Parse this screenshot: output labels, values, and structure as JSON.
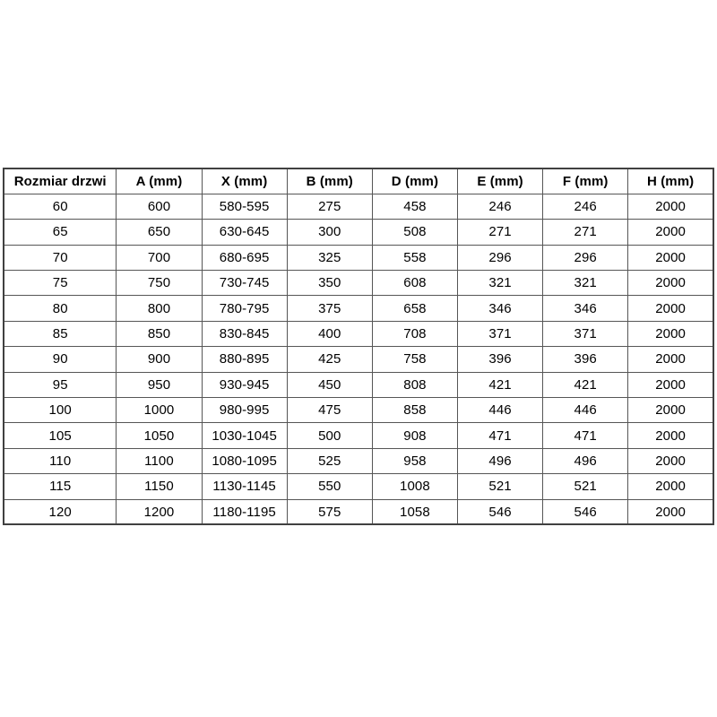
{
  "page": {
    "background_color": "#ffffff",
    "text_color": "#000000",
    "border_color": "#565656"
  },
  "table": {
    "headers": [
      "Rozmiar drzwi",
      "A (mm)",
      "X (mm)",
      "B (mm)",
      "D (mm)",
      "E (mm)",
      "F (mm)",
      "H (mm)"
    ],
    "rows": [
      [
        "60",
        "600",
        "580-595",
        "275",
        "458",
        "246",
        "246",
        "2000"
      ],
      [
        "65",
        "650",
        "630-645",
        "300",
        "508",
        "271",
        "271",
        "2000"
      ],
      [
        "70",
        "700",
        "680-695",
        "325",
        "558",
        "296",
        "296",
        "2000"
      ],
      [
        "75",
        "750",
        "730-745",
        "350",
        "608",
        "321",
        "321",
        "2000"
      ],
      [
        "80",
        "800",
        "780-795",
        "375",
        "658",
        "346",
        "346",
        "2000"
      ],
      [
        "85",
        "850",
        "830-845",
        "400",
        "708",
        "371",
        "371",
        "2000"
      ],
      [
        "90",
        "900",
        "880-895",
        "425",
        "758",
        "396",
        "396",
        "2000"
      ],
      [
        "95",
        "950",
        "930-945",
        "450",
        "808",
        "421",
        "421",
        "2000"
      ],
      [
        "100",
        "1000",
        "980-995",
        "475",
        "858",
        "446",
        "446",
        "2000"
      ],
      [
        "105",
        "1050",
        "1030-1045",
        "500",
        "908",
        "471",
        "471",
        "2000"
      ],
      [
        "110",
        "1100",
        "1080-1095",
        "525",
        "958",
        "496",
        "496",
        "2000"
      ],
      [
        "115",
        "1150",
        "1130-1145",
        "550",
        "1008",
        "521",
        "521",
        "2000"
      ],
      [
        "120",
        "1200",
        "1180-1195",
        "575",
        "1058",
        "546",
        "546",
        "2000"
      ]
    ]
  }
}
